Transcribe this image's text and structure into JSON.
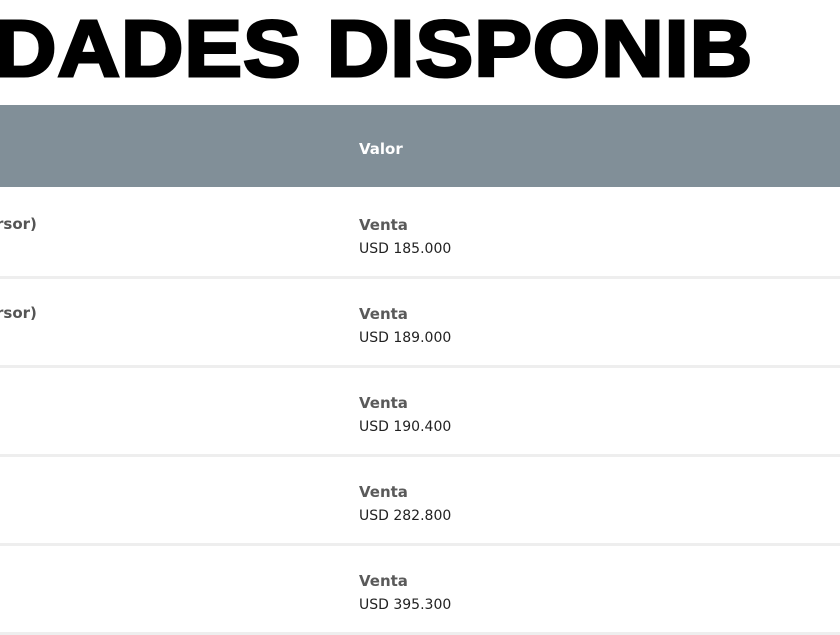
{
  "title": "DADES DISPONIB",
  "table": {
    "header": {
      "valor_label": "Valor"
    },
    "header_color": "#818f98",
    "rows": [
      {
        "left": "rsor)",
        "type": "Venta",
        "price": "USD 185.000"
      },
      {
        "left": "rsor)",
        "type": "Venta",
        "price": "USD 189.000"
      },
      {
        "left": "",
        "type": "Venta",
        "price": "USD 190.400"
      },
      {
        "left": "",
        "type": "Venta",
        "price": "USD 282.800"
      },
      {
        "left": "",
        "type": "Venta",
        "price": "USD 395.300"
      }
    ]
  }
}
